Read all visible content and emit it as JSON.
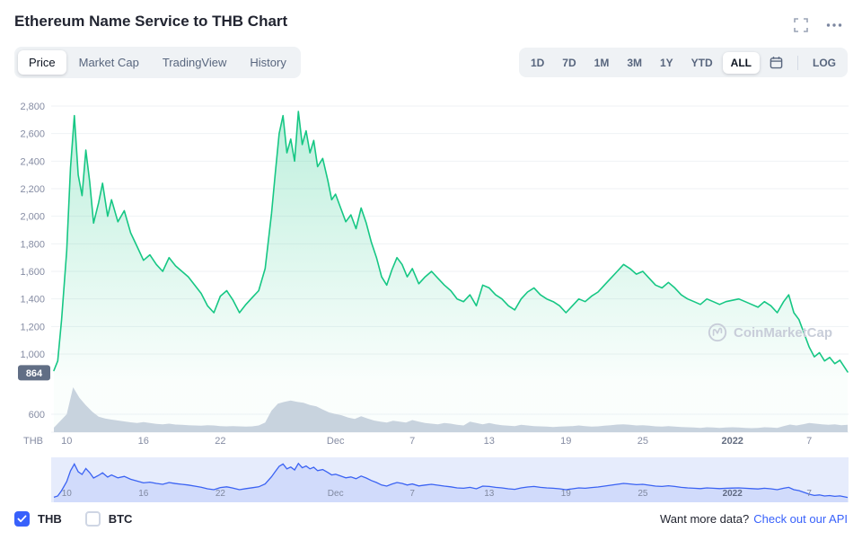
{
  "header": {
    "title": "Ethereum Name Service to THB Chart"
  },
  "tabs": [
    {
      "label": "Price",
      "active": true
    },
    {
      "label": "Market Cap",
      "active": false
    },
    {
      "label": "TradingView",
      "active": false
    },
    {
      "label": "History",
      "active": false
    }
  ],
  "ranges": [
    {
      "label": "1D",
      "active": false
    },
    {
      "label": "7D",
      "active": false
    },
    {
      "label": "1M",
      "active": false
    },
    {
      "label": "3M",
      "active": false
    },
    {
      "label": "1Y",
      "active": false
    },
    {
      "label": "YTD",
      "active": false
    },
    {
      "label": "ALL",
      "active": true
    }
  ],
  "log_label": "LOG",
  "watermark": {
    "label": "CoinMarketCap"
  },
  "footer": {
    "thb_label": "THB",
    "btc_label": "BTC",
    "thb_checked": true,
    "btc_checked": false,
    "more_text": "Want more data?",
    "api_link": "Check out our API"
  },
  "colors": {
    "accent_blue": "#3861fb",
    "price_green": "#16c784",
    "title_text": "#222531",
    "muted_text": "#58667e"
  },
  "chart_data": {
    "type": "line",
    "title": "Ethereum Name Service to THB Chart",
    "axis_unit": "THB",
    "current_price": 864,
    "price_color": "#16c784",
    "volume_color": "#ccd3e0",
    "badge_color": "#616e85",
    "yticks": [
      2800,
      2600,
      2400,
      2200,
      2000,
      1800,
      1600,
      1400,
      1200,
      1000
    ],
    "ylim": [
      864,
      2800
    ],
    "volume_axis_value": 600,
    "xlim_days": [
      0,
      62
    ],
    "xticks": [
      {
        "x": 1,
        "label": "10"
      },
      {
        "x": 7,
        "label": "16"
      },
      {
        "x": 13,
        "label": "22"
      },
      {
        "x": 22,
        "label": "Dec"
      },
      {
        "x": 28,
        "label": "7"
      },
      {
        "x": 34,
        "label": "13"
      },
      {
        "x": 40,
        "label": "19"
      },
      {
        "x": 46,
        "label": "25"
      },
      {
        "x": 53,
        "label": "2022",
        "bold": true
      },
      {
        "x": 59,
        "label": "7"
      }
    ],
    "navigator": {
      "bg": "#e6ecfc",
      "line": "#3b63f3",
      "fill": "#3b63f3",
      "fill_opacity": 0.12
    },
    "points": [
      [
        0,
        880
      ],
      [
        0.3,
        950
      ],
      [
        0.6,
        1250
      ],
      [
        1,
        1750
      ],
      [
        1.3,
        2350
      ],
      [
        1.6,
        2730
      ],
      [
        1.9,
        2300
      ],
      [
        2.2,
        2150
      ],
      [
        2.5,
        2480
      ],
      [
        2.8,
        2250
      ],
      [
        3.1,
        1950
      ],
      [
        3.5,
        2100
      ],
      [
        3.8,
        2240
      ],
      [
        4.2,
        2000
      ],
      [
        4.5,
        2120
      ],
      [
        5,
        1960
      ],
      [
        5.5,
        2040
      ],
      [
        6,
        1880
      ],
      [
        6.5,
        1780
      ],
      [
        7,
        1680
      ],
      [
        7.5,
        1720
      ],
      [
        8,
        1650
      ],
      [
        8.5,
        1600
      ],
      [
        9,
        1700
      ],
      [
        9.5,
        1640
      ],
      [
        10,
        1600
      ],
      [
        10.5,
        1560
      ],
      [
        11,
        1500
      ],
      [
        11.5,
        1440
      ],
      [
        12,
        1350
      ],
      [
        12.5,
        1300
      ],
      [
        13,
        1420
      ],
      [
        13.5,
        1460
      ],
      [
        14,
        1390
      ],
      [
        14.5,
        1300
      ],
      [
        15,
        1360
      ],
      [
        15.5,
        1410
      ],
      [
        16,
        1460
      ],
      [
        16.5,
        1620
      ],
      [
        17,
        2020
      ],
      [
        17.3,
        2320
      ],
      [
        17.6,
        2600
      ],
      [
        17.9,
        2730
      ],
      [
        18.2,
        2460
      ],
      [
        18.5,
        2560
      ],
      [
        18.8,
        2400
      ],
      [
        19.1,
        2760
      ],
      [
        19.4,
        2520
      ],
      [
        19.7,
        2620
      ],
      [
        20,
        2460
      ],
      [
        20.3,
        2550
      ],
      [
        20.6,
        2360
      ],
      [
        21,
        2420
      ],
      [
        21.4,
        2260
      ],
      [
        21.7,
        2120
      ],
      [
        22,
        2160
      ],
      [
        22.4,
        2060
      ],
      [
        22.8,
        1960
      ],
      [
        23.2,
        2010
      ],
      [
        23.6,
        1910
      ],
      [
        24,
        2060
      ],
      [
        24.4,
        1950
      ],
      [
        24.8,
        1810
      ],
      [
        25.2,
        1700
      ],
      [
        25.6,
        1560
      ],
      [
        26,
        1500
      ],
      [
        26.4,
        1610
      ],
      [
        26.8,
        1700
      ],
      [
        27.2,
        1650
      ],
      [
        27.6,
        1560
      ],
      [
        28,
        1620
      ],
      [
        28.5,
        1510
      ],
      [
        29,
        1560
      ],
      [
        29.5,
        1600
      ],
      [
        30,
        1550
      ],
      [
        30.5,
        1500
      ],
      [
        31,
        1460
      ],
      [
        31.5,
        1400
      ],
      [
        32,
        1380
      ],
      [
        32.5,
        1430
      ],
      [
        33,
        1350
      ],
      [
        33.5,
        1500
      ],
      [
        34,
        1480
      ],
      [
        34.5,
        1430
      ],
      [
        35,
        1400
      ],
      [
        35.5,
        1350
      ],
      [
        36,
        1320
      ],
      [
        36.5,
        1400
      ],
      [
        37,
        1450
      ],
      [
        37.5,
        1480
      ],
      [
        38,
        1430
      ],
      [
        38.5,
        1400
      ],
      [
        39,
        1380
      ],
      [
        39.5,
        1350
      ],
      [
        40,
        1300
      ],
      [
        40.5,
        1350
      ],
      [
        41,
        1400
      ],
      [
        41.5,
        1380
      ],
      [
        42,
        1420
      ],
      [
        42.5,
        1450
      ],
      [
        43,
        1500
      ],
      [
        43.5,
        1550
      ],
      [
        44,
        1600
      ],
      [
        44.5,
        1650
      ],
      [
        45,
        1620
      ],
      [
        45.5,
        1580
      ],
      [
        46,
        1600
      ],
      [
        46.5,
        1550
      ],
      [
        47,
        1500
      ],
      [
        47.5,
        1480
      ],
      [
        48,
        1520
      ],
      [
        48.5,
        1480
      ],
      [
        49,
        1430
      ],
      [
        49.5,
        1400
      ],
      [
        50,
        1380
      ],
      [
        50.5,
        1360
      ],
      [
        51,
        1400
      ],
      [
        51.5,
        1380
      ],
      [
        52,
        1360
      ],
      [
        52.5,
        1380
      ],
      [
        53,
        1390
      ],
      [
        53.5,
        1400
      ],
      [
        54,
        1380
      ],
      [
        54.5,
        1360
      ],
      [
        55,
        1340
      ],
      [
        55.5,
        1380
      ],
      [
        56,
        1350
      ],
      [
        56.5,
        1300
      ],
      [
        57,
        1380
      ],
      [
        57.4,
        1430
      ],
      [
        57.8,
        1300
      ],
      [
        58.2,
        1250
      ],
      [
        58.6,
        1150
      ],
      [
        59,
        1050
      ],
      [
        59.4,
        980
      ],
      [
        59.8,
        1010
      ],
      [
        60.2,
        950
      ],
      [
        60.6,
        975
      ],
      [
        61,
        930
      ],
      [
        61.4,
        955
      ],
      [
        62,
        870
      ]
    ],
    "volume": [
      [
        0,
        150
      ],
      [
        1,
        600
      ],
      [
        1.5,
        1500
      ],
      [
        2,
        1150
      ],
      [
        2.5,
        900
      ],
      [
        3,
        680
      ],
      [
        3.5,
        520
      ],
      [
        4,
        460
      ],
      [
        4.5,
        420
      ],
      [
        5,
        390
      ],
      [
        5.5,
        360
      ],
      [
        6,
        330
      ],
      [
        6.5,
        310
      ],
      [
        7,
        340
      ],
      [
        7.5,
        310
      ],
      [
        8,
        280
      ],
      [
        8.5,
        265
      ],
      [
        9,
        285
      ],
      [
        9.5,
        255
      ],
      [
        10,
        245
      ],
      [
        10.5,
        235
      ],
      [
        11,
        225
      ],
      [
        11.5,
        215
      ],
      [
        12,
        235
      ],
      [
        12.5,
        225
      ],
      [
        13,
        205
      ],
      [
        13.5,
        195
      ],
      [
        14,
        205
      ],
      [
        14.5,
        195
      ],
      [
        15,
        185
      ],
      [
        15.5,
        195
      ],
      [
        16,
        225
      ],
      [
        16.5,
        320
      ],
      [
        17,
        720
      ],
      [
        17.5,
        950
      ],
      [
        18,
        1010
      ],
      [
        18.5,
        1060
      ],
      [
        19,
        1010
      ],
      [
        19.5,
        985
      ],
      [
        20,
        910
      ],
      [
        20.5,
        860
      ],
      [
        21,
        760
      ],
      [
        21.5,
        660
      ],
      [
        22,
        610
      ],
      [
        22.5,
        560
      ],
      [
        23,
        490
      ],
      [
        23.5,
        440
      ],
      [
        24,
        530
      ],
      [
        24.5,
        460
      ],
      [
        25,
        390
      ],
      [
        25.5,
        355
      ],
      [
        26,
        325
      ],
      [
        26.5,
        385
      ],
      [
        27,
        355
      ],
      [
        27.5,
        325
      ],
      [
        28,
        405
      ],
      [
        28.5,
        355
      ],
      [
        29,
        305
      ],
      [
        29.5,
        285
      ],
      [
        30,
        265
      ],
      [
        30.5,
        305
      ],
      [
        31,
        285
      ],
      [
        31.5,
        245
      ],
      [
        32,
        225
      ],
      [
        32.5,
        355
      ],
      [
        33,
        305
      ],
      [
        33.5,
        265
      ],
      [
        34,
        305
      ],
      [
        34.5,
        265
      ],
      [
        35,
        235
      ],
      [
        35.5,
        215
      ],
      [
        36,
        205
      ],
      [
        36.5,
        245
      ],
      [
        37,
        225
      ],
      [
        37.5,
        205
      ],
      [
        38,
        195
      ],
      [
        38.5,
        185
      ],
      [
        39,
        175
      ],
      [
        39.5,
        185
      ],
      [
        40,
        195
      ],
      [
        40.5,
        205
      ],
      [
        41,
        225
      ],
      [
        41.5,
        205
      ],
      [
        42,
        185
      ],
      [
        42.5,
        195
      ],
      [
        43,
        215
      ],
      [
        43.5,
        235
      ],
      [
        44,
        255
      ],
      [
        44.5,
        265
      ],
      [
        45,
        245
      ],
      [
        45.5,
        225
      ],
      [
        46,
        235
      ],
      [
        46.5,
        215
      ],
      [
        47,
        195
      ],
      [
        47.5,
        185
      ],
      [
        48,
        205
      ],
      [
        48.5,
        185
      ],
      [
        49,
        175
      ],
      [
        49.5,
        165
      ],
      [
        50,
        155
      ],
      [
        50.5,
        145
      ],
      [
        51,
        165
      ],
      [
        51.5,
        155
      ],
      [
        52,
        145
      ],
      [
        52.5,
        155
      ],
      [
        53,
        165
      ],
      [
        53.5,
        155
      ],
      [
        54,
        145
      ],
      [
        54.5,
        135
      ],
      [
        55,
        145
      ],
      [
        55.5,
        165
      ],
      [
        56,
        155
      ],
      [
        56.5,
        145
      ],
      [
        57,
        205
      ],
      [
        57.5,
        255
      ],
      [
        58,
        225
      ],
      [
        58.5,
        265
      ],
      [
        59,
        305
      ],
      [
        59.5,
        285
      ],
      [
        60,
        265
      ],
      [
        60.5,
        245
      ],
      [
        61,
        265
      ],
      [
        61.5,
        235
      ],
      [
        62,
        245
      ]
    ]
  }
}
